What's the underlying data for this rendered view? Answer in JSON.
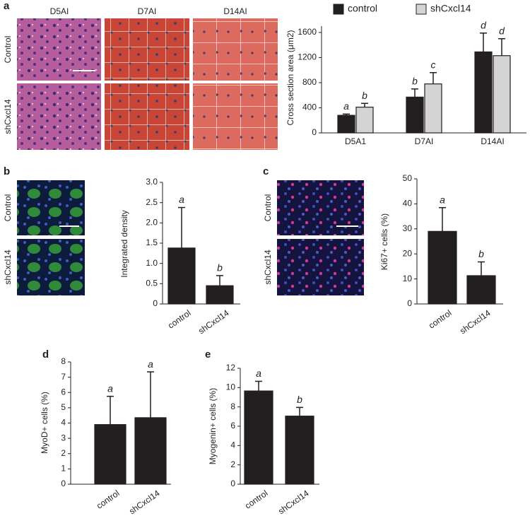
{
  "panel_labels": [
    "a",
    "b",
    "c",
    "d",
    "e"
  ],
  "micrographs": [
    {
      "columns": [
        "D5AI",
        "D7AI",
        "D14AI"
      ],
      "rows": [
        "Control",
        "shCxcl14"
      ]
    },
    {
      "rows": [
        "Control",
        "shCxcl14"
      ]
    },
    {
      "rows": [
        "Control",
        "shCxcl14"
      ]
    }
  ],
  "chart_data": [
    {
      "type": "bar",
      "y_label": "Cross section area (μm2)",
      "categories": [
        "D5A1",
        "D7AI",
        "D14AI"
      ],
      "series": [
        {
          "name": "control",
          "color": "#231f20",
          "values": [
            280,
            570,
            1290
          ],
          "errors": [
            20,
            130,
            300
          ],
          "letters": [
            "a",
            "b",
            "d"
          ]
        },
        {
          "name": "shCxcl14",
          "color": "#d4d4d4",
          "values": [
            410,
            780,
            1230
          ],
          "errors": [
            60,
            180,
            270
          ],
          "letters": [
            "b",
            "c",
            "d"
          ]
        }
      ],
      "ylim": [
        0,
        1700
      ],
      "yticks": [
        0,
        400,
        800,
        1200,
        1600
      ]
    },
    {
      "type": "bar",
      "y_label": "Integrated density",
      "categories": [
        "control",
        "shCxcl14"
      ],
      "color": "#231f20",
      "values": [
        1.38,
        0.45
      ],
      "errors": [
        1.0,
        0.25
      ],
      "letters": [
        "a",
        "b"
      ],
      "ylim": [
        0,
        3
      ],
      "yticks": [
        0,
        0.5,
        {
          "value": 1,
          "label": "1.0"
        },
        1.5,
        {
          "value": 2,
          "label": "2.0"
        },
        2.5,
        {
          "value": 3,
          "label": "3.0"
        }
      ]
    },
    {
      "type": "bar",
      "y_label": "Ki67+ cells (%)",
      "categories": [
        "control",
        "shCxcl14"
      ],
      "color": "#231f20",
      "values": [
        29,
        11.3
      ],
      "errors": [
        9.5,
        5.5
      ],
      "letters": [
        "a",
        "b"
      ],
      "ylim": [
        0,
        50
      ],
      "yticks": [
        0,
        10,
        20,
        30,
        40,
        50
      ]
    },
    {
      "type": "bar",
      "y_label": "MyoD+ cells (%)",
      "categories": [
        "control",
        "shCxcl14"
      ],
      "color": "#231f20",
      "values": [
        3.9,
        4.35
      ],
      "errors": [
        1.85,
        3.0
      ],
      "letters": [
        "a",
        "a"
      ],
      "ylim": [
        0,
        8
      ],
      "yticks": [
        0,
        1,
        2,
        3,
        4,
        5,
        6,
        7,
        8
      ]
    },
    {
      "type": "bar",
      "y_label": "Myogenin+ cells (%)",
      "categories": [
        "control",
        "shCxcl14"
      ],
      "color": "#231f20",
      "values": [
        9.65,
        7.05
      ],
      "errors": [
        1.0,
        0.9
      ],
      "letters": [
        "a",
        "b"
      ],
      "ylim": [
        0,
        12
      ],
      "yticks": [
        0,
        2,
        4,
        6,
        8,
        10,
        12
      ]
    }
  ]
}
